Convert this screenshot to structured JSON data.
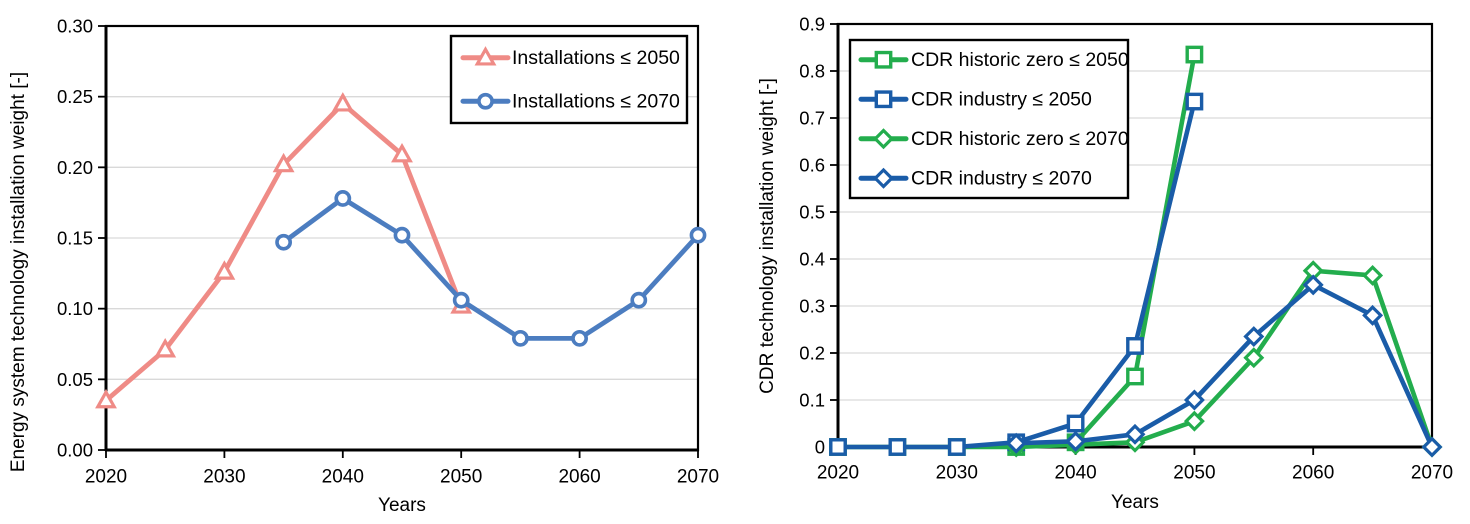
{
  "page": {
    "background": "#ffffff",
    "text_color": "#000000",
    "grid_color": "#d9d9d9",
    "axis_color": "#000000"
  },
  "chart_data": [
    {
      "type": "line",
      "panel": "left",
      "title": "",
      "xlabel": "Years",
      "ylabel": "Energy system technology installation weight [-]",
      "x_range": [
        2020,
        2070
      ],
      "x_ticks": [
        "2020",
        "2030",
        "2040",
        "2050",
        "2060",
        "2070"
      ],
      "y_range": [
        0,
        0.3
      ],
      "y_ticks": [
        "0.00",
        "0.05",
        "0.10",
        "0.15",
        "0.20",
        "0.25",
        "0.30"
      ],
      "grid": "horizontal",
      "legend_position": "top-right-inside",
      "series": [
        {
          "name": "Installations ≤ 2050",
          "color": "#EF8B86",
          "marker": "triangle",
          "x": [
            2020,
            2025,
            2030,
            2035,
            2040,
            2045,
            2050
          ],
          "y": [
            0.035,
            0.071,
            0.126,
            0.202,
            0.245,
            0.209,
            0.102
          ]
        },
        {
          "name": "Installations ≤ 2070",
          "color": "#4C7DC0",
          "marker": "circle",
          "x": [
            2035,
            2040,
            2045,
            2050,
            2055,
            2060,
            2065,
            2070
          ],
          "y": [
            0.147,
            0.178,
            0.152,
            0.106,
            0.079,
            0.079,
            0.106,
            0.152
          ]
        }
      ]
    },
    {
      "type": "line",
      "panel": "right",
      "title": "",
      "xlabel": "Years",
      "ylabel": "CDR technology installation weight [-]",
      "x_range": [
        2020,
        2070
      ],
      "x_ticks": [
        "2020",
        "2030",
        "2040",
        "2050",
        "2060",
        "2070"
      ],
      "y_range": [
        0,
        0.9
      ],
      "y_ticks": [
        "0",
        "0.1",
        "0.2",
        "0.3",
        "0.4",
        "0.5",
        "0.6",
        "0.7",
        "0.8",
        "0.9"
      ],
      "grid": "horizontal",
      "legend_position": "top-left-inside",
      "series": [
        {
          "name": "CDR historic zero ≤ 2050",
          "color": "#23AD4D",
          "marker": "square",
          "x": [
            2020,
            2025,
            2030,
            2035,
            2040,
            2045,
            2050
          ],
          "y": [
            0,
            0,
            0,
            0,
            0.01,
            0.15,
            0.835
          ]
        },
        {
          "name": "CDR industry ≤ 2050",
          "color": "#1A5CA8",
          "marker": "square",
          "x": [
            2020,
            2025,
            2030,
            2035,
            2040,
            2045,
            2050
          ],
          "y": [
            0,
            0,
            0,
            0.01,
            0.05,
            0.215,
            0.735
          ]
        },
        {
          "name": "CDR historic zero ≤ 2070",
          "color": "#23AD4D",
          "marker": "diamond",
          "x": [
            2035,
            2040,
            2045,
            2050,
            2055,
            2060,
            2065,
            2070
          ],
          "y": [
            0,
            0.005,
            0.01,
            0.055,
            0.19,
            0.375,
            0.365,
            0
          ]
        },
        {
          "name": "CDR industry ≤ 2070",
          "color": "#1A5CA8",
          "marker": "diamond",
          "x": [
            2035,
            2040,
            2045,
            2050,
            2055,
            2060,
            2065,
            2070
          ],
          "y": [
            0.008,
            0.012,
            0.027,
            0.1,
            0.235,
            0.345,
            0.28,
            0
          ]
        }
      ]
    }
  ]
}
